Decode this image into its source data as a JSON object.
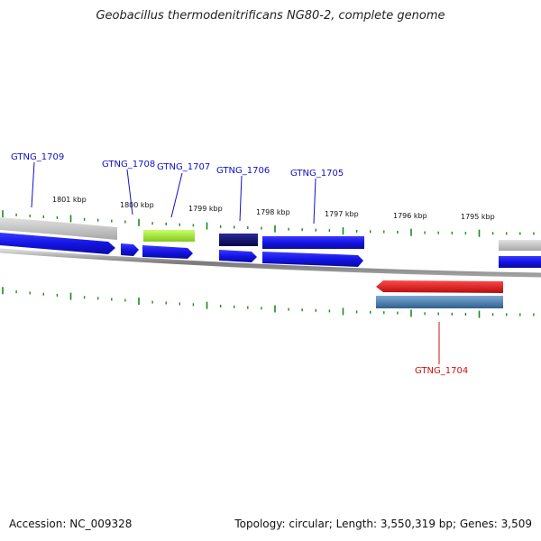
{
  "title": "Geobacillus thermodenitrificans NG80-2, complete genome",
  "footer": {
    "accession": "Accession: NC_009328",
    "summary": "Topology: circular; Length: 3,550,319 bp; Genes: 3,509"
  },
  "colors": {
    "tick": "#1a8a1a",
    "label_forward": "#1010c8",
    "label_reverse": "#d01010",
    "backbone": "#888888",
    "gene_blue": "#1414e6",
    "gene_navy": "#0c0c6e",
    "gene_lime": "#a4e83a",
    "gene_grey": "#c4c4c4",
    "gene_red": "#ee1a1a",
    "gene_steel": "#4a82b4"
  },
  "ruler": {
    "unit": "kbp",
    "labels": [
      "1801 kbp",
      "1800 kbp",
      "1799 kbp",
      "1798 kbp",
      "1797 kbp",
      "1796 kbp",
      "1795 kbp"
    ]
  },
  "genes": [
    {
      "name": "GTNG_1709",
      "strand": "+"
    },
    {
      "name": "GTNG_1708",
      "strand": "+"
    },
    {
      "name": "GTNG_1707",
      "strand": "+"
    },
    {
      "name": "GTNG_1706",
      "strand": "+"
    },
    {
      "name": "GTNG_1705",
      "strand": "+"
    },
    {
      "name": "GTNG_1704",
      "strand": "-"
    }
  ]
}
